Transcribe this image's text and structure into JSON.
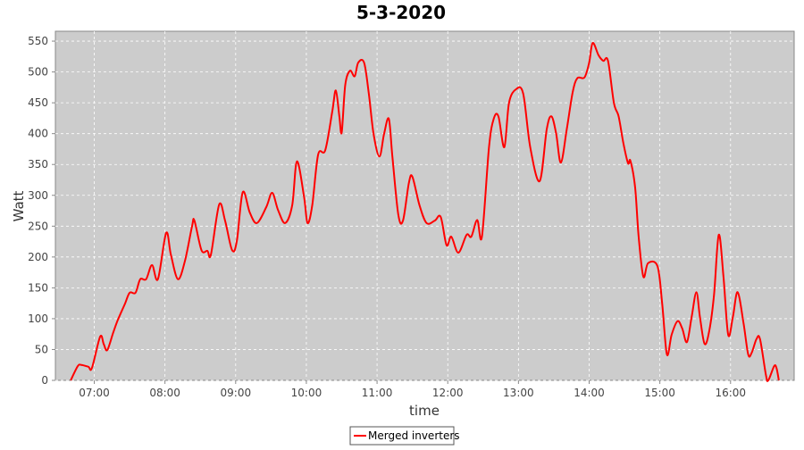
{
  "chart_data": {
    "type": "line",
    "title": "5-3-2020",
    "x_label": "time",
    "y_label": "Watt",
    "x": [
      "06:40",
      "06:46",
      "06:49",
      "06:55",
      "06:58",
      "07:05",
      "07:08",
      "07:11",
      "07:16",
      "07:20",
      "07:26",
      "07:30",
      "07:35",
      "07:39",
      "07:44",
      "07:49",
      "07:54",
      "08:01",
      "08:05",
      "08:11",
      "08:17",
      "08:23",
      "08:25",
      "08:31",
      "08:36",
      "08:39",
      "08:46",
      "08:51",
      "08:57",
      "09:01",
      "09:06",
      "09:12",
      "09:18",
      "09:26",
      "09:31",
      "09:36",
      "09:42",
      "09:48",
      "09:52",
      "09:58",
      "10:01",
      "10:05",
      "10:10",
      "10:16",
      "10:22",
      "10:25",
      "10:28",
      "10:30",
      "10:33",
      "10:37",
      "10:41",
      "10:44",
      "10:49",
      "10:53",
      "10:57",
      "11:02",
      "11:06",
      "11:10",
      "11:13",
      "11:18",
      "11:22",
      "11:27",
      "11:30",
      "11:36",
      "11:42",
      "11:49",
      "11:54",
      "11:59",
      "12:03",
      "12:09",
      "12:16",
      "12:20",
      "12:25",
      "12:29",
      "12:35",
      "12:39",
      "12:43",
      "12:48",
      "12:52",
      "12:58",
      "13:04",
      "13:10",
      "13:18",
      "13:24",
      "13:28",
      "13:32",
      "13:36",
      "13:41",
      "13:46",
      "13:50",
      "13:56",
      "14:00",
      "14:03",
      "14:08",
      "14:12",
      "14:16",
      "14:21",
      "14:25",
      "14:29",
      "14:33",
      "14:35",
      "14:39",
      "14:42",
      "14:46",
      "14:50",
      "14:58",
      "15:02",
      "15:06",
      "15:10",
      "15:15",
      "15:19",
      "15:23",
      "15:27",
      "15:31",
      "15:34",
      "15:38",
      "15:42",
      "15:46",
      "15:50",
      "15:54",
      "15:58",
      "16:02",
      "16:06",
      "16:11",
      "16:15",
      "16:18",
      "16:22",
      "16:25",
      "16:30",
      "16:32",
      "16:37",
      "16:39",
      "16:41"
    ],
    "series": [
      {
        "name": "Merged inverters",
        "color": "#ff0000",
        "values": [
          0,
          23,
          25,
          22,
          20,
          71,
          59,
          49,
          77,
          98,
          124,
          142,
          142,
          164,
          164,
          187,
          164,
          239,
          204,
          164,
          194,
          250,
          259,
          211,
          210,
          204,
          285,
          259,
          211,
          226,
          305,
          272,
          255,
          281,
          304,
          276,
          255,
          284,
          355,
          298,
          255,
          284,
          366,
          373,
          436,
          470,
          428,
          402,
          479,
          502,
          493,
          515,
          515,
          465,
          400,
          363,
          400,
          424,
          363,
          269,
          259,
          320,
          330,
          284,
          255,
          259,
          265,
          219,
          233,
          207,
          236,
          233,
          260,
          233,
          378,
          424,
          428,
          378,
          450,
          472,
          465,
          378,
          323,
          407,
          428,
          400,
          353,
          407,
          467,
          490,
          491,
          515,
          547,
          527,
          518,
          518,
          450,
          428,
          385,
          352,
          356,
          313,
          233,
          168,
          190,
          185,
          124,
          42,
          74,
          96,
          84,
          62,
          103,
          143,
          103,
          59,
          81,
          139,
          236,
          168,
          74,
          103,
          143,
          93,
          42,
          45,
          67,
          67,
          9,
          0,
          23,
          20,
          0
        ]
      }
    ],
    "xlim": [
      "06:27",
      "16:54"
    ],
    "xticks": [
      "07:00",
      "08:00",
      "09:00",
      "10:00",
      "11:00",
      "12:00",
      "13:00",
      "14:00",
      "15:00",
      "16:00"
    ],
    "ylim": [
      0,
      566
    ],
    "yticks": [
      0,
      50,
      100,
      150,
      200,
      250,
      300,
      350,
      400,
      450,
      500,
      550
    ],
    "grid": true,
    "legend": "bottom"
  }
}
